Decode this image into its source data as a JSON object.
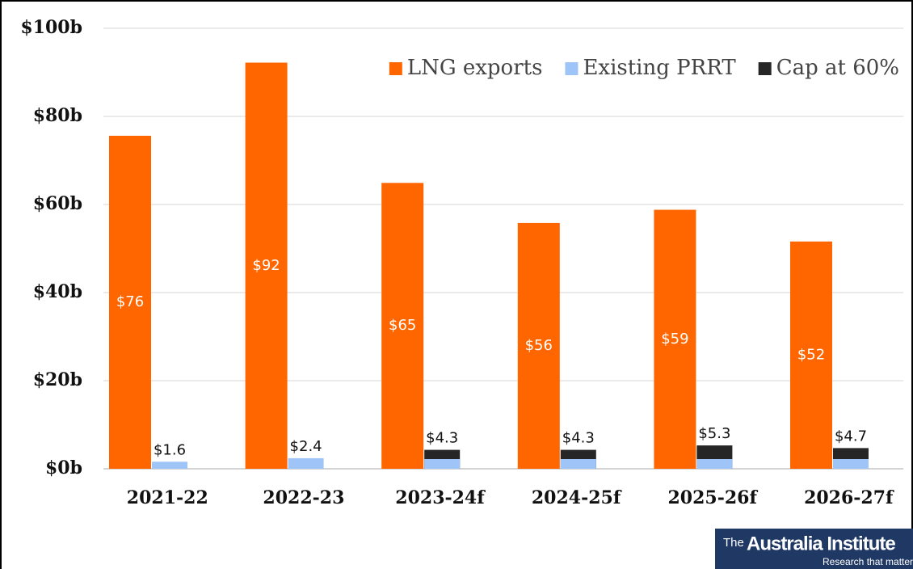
{
  "chart_data": {
    "type": "bar",
    "categories": [
      "2021-22",
      "2022-23",
      "2023-24f",
      "2024-25f",
      "2025-26f",
      "2026-27f"
    ],
    "series": [
      {
        "name": "LNG exports",
        "color": "#ff6600",
        "values": [
          75.6,
          92.2,
          64.9,
          55.8,
          58.8,
          51.6
        ],
        "value_labels": [
          "$76",
          "$92",
          "$65",
          "$56",
          "$59",
          "$52"
        ]
      },
      {
        "name": "Existing PRRT",
        "color": "#9fc5f8",
        "values": [
          1.6,
          2.4,
          2.2,
          2.2,
          2.2,
          2.2
        ],
        "value_labels": [
          "$1.6",
          "$2.4",
          null,
          null,
          null,
          null
        ]
      },
      {
        "name": "Cap at 60%",
        "color": "#262626",
        "values": [
          null,
          null,
          4.3,
          4.3,
          5.3,
          4.7
        ],
        "value_labels": [
          null,
          null,
          "$4.3",
          "$4.3",
          "$5.3",
          "$4.7"
        ]
      }
    ],
    "ylim": [
      0,
      100
    ],
    "yticks": [
      {
        "value": 0,
        "label": "$0b"
      },
      {
        "value": 20,
        "label": "$20b"
      },
      {
        "value": 40,
        "label": "$40b"
      },
      {
        "value": 60,
        "label": "$60b"
      },
      {
        "value": 80,
        "label": "$80b"
      },
      {
        "value": 100,
        "label": "$100b"
      }
    ],
    "grid": true,
    "legend": "top-right"
  },
  "logo": {
    "prefix": "The",
    "name": "Australia Institute",
    "tagline": "Research that matters"
  }
}
